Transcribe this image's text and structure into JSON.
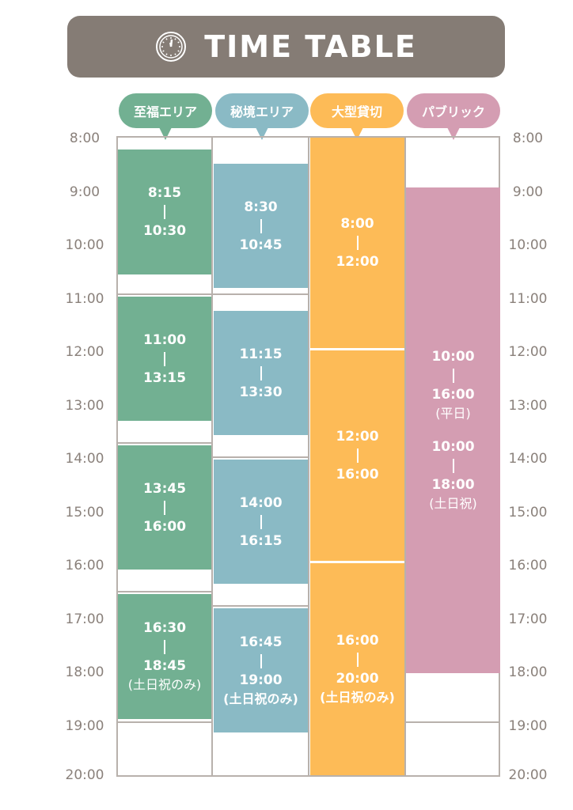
{
  "header": {
    "title": "TIME TABLE",
    "icon": "clock-icon"
  },
  "areas": [
    {
      "label": "至福エリア",
      "color": "#72b092"
    },
    {
      "label": "秘境エリア",
      "color": "#8abac5"
    },
    {
      "label": "大型貸切",
      "color": "#fdbb57"
    },
    {
      "label": "パブリック",
      "color": "#d49db2"
    }
  ],
  "hours": [
    "8:00",
    "9:00",
    "10:00",
    "11:00",
    "12:00",
    "13:00",
    "14:00",
    "15:00",
    "16:00",
    "17:00",
    "18:00",
    "19:00",
    "20:00"
  ],
  "schedule": {
    "shifuku": [
      {
        "start": "8:15",
        "end": "10:30"
      },
      {
        "start": "11:00",
        "end": "13:15"
      },
      {
        "start": "13:45",
        "end": "16:00"
      },
      {
        "start": "16:30",
        "end": "18:45",
        "note": "(土日祝のみ)"
      }
    ],
    "hikyo": [
      {
        "start": "8:30",
        "end": "10:45"
      },
      {
        "start": "11:15",
        "end": "13:30"
      },
      {
        "start": "14:00",
        "end": "16:15"
      },
      {
        "start": "16:45",
        "end": "19:00",
        "note": "(土日祝のみ)"
      }
    ],
    "ogata": [
      {
        "start": "8:00",
        "end": "12:00"
      },
      {
        "start": "12:00",
        "end": "16:00"
      },
      {
        "start": "16:00",
        "end": "20:00",
        "note": "(土日祝のみ)"
      }
    ],
    "public": [
      {
        "start": "10:00",
        "end": "16:00",
        "note": "(平日)"
      },
      {
        "start": "10:00",
        "end": "18:00",
        "note": "(土日祝)"
      }
    ]
  }
}
